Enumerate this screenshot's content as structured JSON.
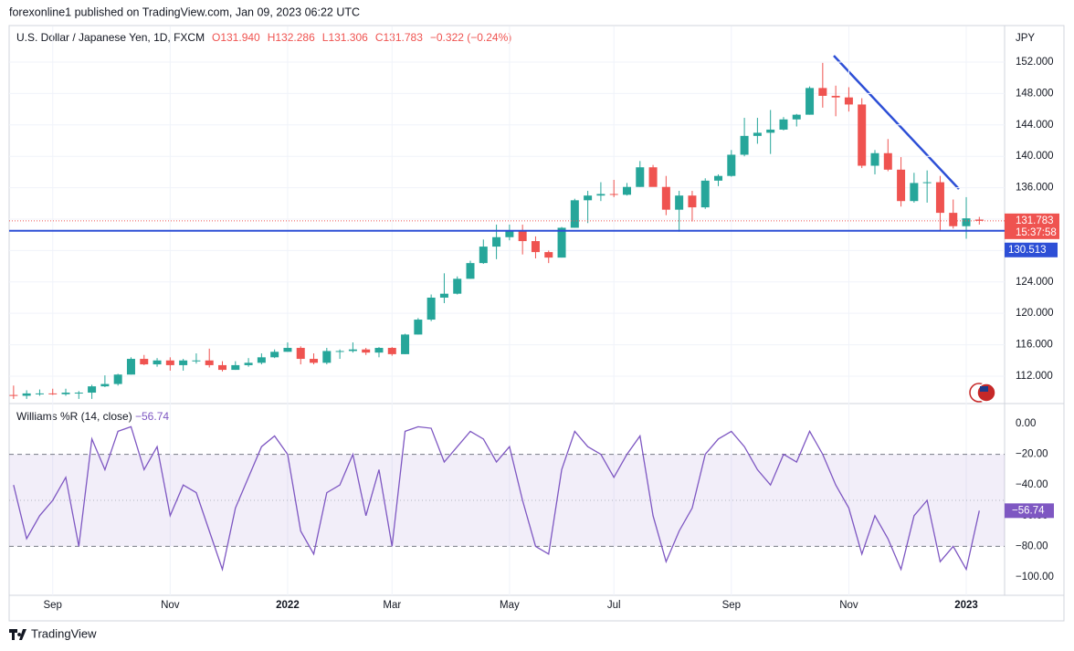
{
  "header": {
    "published": "forexonline1 published on TradingView.com, Jan 09, 2023 06:22 UTC"
  },
  "footer": {
    "brand": "TradingView"
  },
  "chart_data": [
    {
      "type": "candlestick",
      "title": "U.S. Dollar / Japanese Yen, 1D, FXCM",
      "ohlc_legend": [
        "O131.940",
        "H132.286",
        "L131.306",
        "C131.783",
        "−0.322 (−0.24%)"
      ],
      "currency": "JPY",
      "categories": [
        null,
        null,
        null,
        "Sep",
        null,
        null,
        null,
        null,
        null,
        null,
        null,
        null,
        "Nov",
        null,
        null,
        null,
        null,
        null,
        null,
        null,
        null,
        "2022",
        null,
        null,
        null,
        null,
        null,
        null,
        null,
        "Mar",
        null,
        null,
        null,
        null,
        null,
        null,
        null,
        null,
        "May",
        null,
        null,
        null,
        null,
        null,
        null,
        null,
        "Jul",
        null,
        null,
        null,
        null,
        null,
        null,
        null,
        null,
        "Sep",
        null,
        null,
        null,
        null,
        null,
        null,
        null,
        null,
        "Nov",
        null,
        null,
        null,
        null,
        null,
        null,
        null,
        null,
        "2023",
        null
      ],
      "open": [
        109.6,
        109.5,
        109.8,
        109.8,
        109.7,
        109.9,
        109.9,
        110.7,
        111.0,
        112.2,
        114.2,
        113.5,
        114.0,
        113.4,
        114.0,
        114.0,
        113.4,
        112.8,
        113.4,
        113.7,
        114.4,
        115.1,
        115.6,
        114.2,
        113.7,
        115.2,
        115.2,
        115.4,
        115.0,
        115.6,
        114.8,
        117.3,
        119.2,
        122.0,
        122.5,
        124.4,
        126.4,
        128.5,
        129.7,
        130.5,
        129.2,
        127.8,
        127.1,
        130.9,
        134.4,
        135.0,
        135.2,
        135.1,
        136.1,
        138.6,
        136.1,
        133.2,
        135.0,
        133.5,
        136.9,
        137.5,
        140.2,
        142.6,
        143.0,
        143.4,
        144.7,
        145.3,
        148.7,
        147.7,
        147.5,
        146.6,
        138.8,
        140.4,
        138.3,
        134.3,
        136.6,
        136.7,
        132.8,
        131.1,
        131.94
      ],
      "high": [
        110.8,
        110.2,
        110.3,
        110.4,
        110.4,
        110.1,
        110.9,
        112.1,
        112.3,
        114.4,
        114.7,
        114.3,
        114.4,
        114.2,
        114.9,
        115.5,
        113.9,
        113.9,
        114.3,
        114.9,
        115.4,
        116.3,
        115.8,
        114.9,
        115.6,
        115.4,
        116.3,
        115.6,
        115.7,
        115.7,
        117.4,
        119.4,
        122.4,
        125.1,
        124.7,
        126.7,
        129.4,
        131.3,
        131.3,
        131.3,
        129.8,
        128.0,
        131.0,
        134.6,
        135.6,
        136.7,
        137.0,
        136.6,
        139.4,
        138.9,
        137.5,
        135.6,
        135.6,
        137.2,
        137.7,
        140.8,
        144.9,
        144.9,
        145.9,
        145.0,
        145.4,
        148.9,
        151.9,
        149.0,
        148.8,
        147.4,
        140.8,
        142.2,
        139.9,
        137.9,
        138.2,
        137.5,
        134.5,
        134.8,
        132.286
      ],
      "low": [
        109.1,
        109.1,
        109.5,
        109.6,
        109.5,
        109.1,
        109.1,
        110.6,
        110.8,
        112.2,
        113.4,
        113.2,
        112.7,
        112.7,
        113.6,
        113.1,
        112.6,
        112.8,
        113.2,
        113.5,
        114.3,
        115.1,
        113.5,
        113.5,
        113.5,
        114.2,
        115.0,
        114.7,
        114.4,
        114.6,
        114.8,
        117.3,
        119.0,
        121.3,
        122.4,
        124.4,
        126.3,
        126.9,
        129.3,
        127.5,
        127.0,
        126.4,
        127.1,
        130.9,
        131.5,
        134.3,
        134.8,
        135.0,
        136.1,
        136.5,
        132.5,
        130.4,
        131.7,
        133.3,
        136.2,
        137.4,
        140.0,
        141.6,
        140.3,
        143.3,
        143.8,
        145.3,
        146.2,
        145.1,
        145.7,
        138.5,
        137.7,
        138.1,
        133.6,
        134.1,
        134.1,
        130.6,
        130.8,
        129.5,
        131.306
      ],
      "close": [
        109.5,
        109.8,
        109.8,
        109.7,
        109.9,
        109.9,
        110.7,
        111.0,
        112.2,
        114.2,
        113.5,
        114.0,
        113.4,
        114.0,
        114.0,
        113.4,
        112.8,
        113.4,
        113.7,
        114.4,
        115.1,
        115.6,
        114.2,
        113.7,
        115.2,
        115.2,
        115.4,
        115.0,
        115.6,
        114.8,
        117.3,
        119.2,
        122.0,
        122.5,
        124.4,
        126.4,
        128.5,
        129.7,
        130.5,
        129.2,
        127.8,
        127.1,
        130.9,
        134.4,
        135.0,
        135.2,
        135.1,
        136.1,
        138.6,
        136.1,
        133.2,
        135.0,
        133.5,
        136.9,
        137.5,
        140.2,
        142.6,
        143.0,
        143.4,
        144.7,
        145.3,
        148.7,
        147.7,
        147.5,
        146.6,
        138.8,
        140.4,
        138.3,
        134.3,
        136.6,
        136.7,
        132.8,
        131.1,
        132.1,
        131.783
      ],
      "up_color": "#26a69a",
      "down_color": "#ef5350",
      "ylim": [
        108.74,
        156.42
      ],
      "yticks": [
        {
          "value": 112,
          "label": "112.000"
        },
        {
          "value": 116,
          "label": "116.000"
        },
        {
          "value": 120,
          "label": "120.000"
        },
        {
          "value": 124,
          "label": "124.000"
        },
        {
          "value": 128,
          "label": "128.000"
        },
        {
          "value": 132,
          "label": "132.000"
        },
        {
          "value": 136,
          "label": "136.000"
        },
        {
          "value": 140,
          "label": "140.000"
        },
        {
          "value": 144,
          "label": "144.000"
        },
        {
          "value": 148,
          "label": "148.000"
        },
        {
          "value": 152,
          "label": "152.000"
        }
      ],
      "grid": true,
      "hline": {
        "value": 130.513,
        "color": "#2d4fd6"
      },
      "countdown": "15:37:58"
    },
    {
      "type": "line",
      "title": "Williams %R (14, close)",
      "last_value_label": "−56.74",
      "color": "#7e57c2",
      "values": [
        -40,
        -75,
        -60,
        -50,
        -35,
        -80,
        -10,
        -30,
        -5,
        -2,
        -30,
        -15,
        -60,
        -40,
        -45,
        -70,
        -95,
        -55,
        -35,
        -15,
        -8,
        -20,
        -70,
        -85,
        -45,
        -40,
        -20,
        -60,
        -30,
        -80,
        -5,
        -2,
        -3,
        -25,
        -15,
        -5,
        -10,
        -25,
        -15,
        -50,
        -80,
        -85,
        -30,
        -5,
        -15,
        -20,
        -35,
        -20,
        -8,
        -60,
        -90,
        -70,
        -55,
        -20,
        -10,
        -5,
        -15,
        -30,
        -40,
        -20,
        -25,
        -5,
        -20,
        -40,
        -55,
        -85,
        -60,
        -75,
        -95,
        -60,
        -50,
        -90,
        -80,
        -95,
        -56.74
      ],
      "ylim": [
        -111.9,
        12.5
      ],
      "yticks": [
        {
          "value": 0,
          "label": "0.00"
        },
        {
          "value": -20,
          "label": "−20.00"
        },
        {
          "value": -40,
          "label": "−40.00"
        },
        {
          "value": -60,
          "label": "−60.00"
        },
        {
          "value": -80,
          "label": "−80.00"
        },
        {
          "value": -100,
          "label": "−100.00"
        }
      ],
      "band": [
        -80,
        -20
      ],
      "midline": -50
    }
  ]
}
